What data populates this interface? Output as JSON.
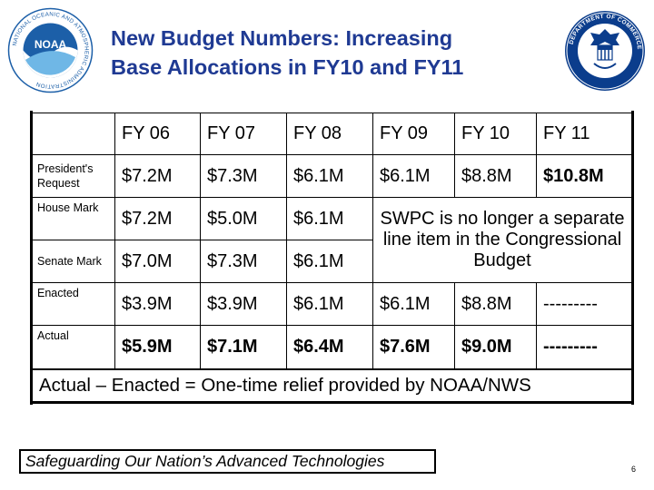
{
  "header": {
    "title_line1": "New Budget Numbers: Increasing",
    "title_line2": "Base Allocations in FY10 and FY11",
    "left_logo": {
      "name": "noaa-logo",
      "ring_text": "NATIONAL OCEANIC AND ATMOSPHERIC ADMINISTRATION",
      "ring_text_bottom": "U.S. DEPARTMENT OF COMMERCE",
      "center_text": "NOAA"
    },
    "right_logo": {
      "name": "department-of-commerce-seal",
      "ring_text": "DEPARTMENT OF COMMERCE",
      "ring_text_bottom": "UNITED STATES OF AMERICA"
    }
  },
  "table": {
    "years": [
      "FY 06",
      "FY 07",
      "FY 08",
      "FY 09",
      "FY 10",
      "FY 11"
    ],
    "rows": {
      "presidents_request": {
        "label": "President's Request",
        "values": [
          "$7.2M",
          "$7.3M",
          "$6.1M",
          "$6.1M",
          "$8.8M",
          "$10.8M"
        ]
      },
      "house_mark": {
        "label": "House Mark",
        "values": [
          "$7.2M",
          "$5.0M",
          "$6.1M"
        ]
      },
      "senate_mark": {
        "label": "Senate Mark",
        "values": [
          "$7.0M",
          "$7.3M",
          "$6.1M"
        ]
      },
      "enacted": {
        "label": "Enacted",
        "values": [
          "$3.9M",
          "$3.9M",
          "$6.1M",
          "$6.1M",
          "$8.8M",
          "---------"
        ]
      },
      "actual": {
        "label": "Actual",
        "values": [
          "$5.9M",
          "$7.1M",
          "$6.4M",
          "$7.6M",
          "$9.0M",
          "---------"
        ]
      }
    },
    "note": "SWPC is no longer a separate line item in the Congressional Budget"
  },
  "relief_text": "Actual – Enacted = One-time relief provided by NOAA/NWS",
  "footer": {
    "tagline": "Safeguarding Our Nation’s Advanced Technologies",
    "page_number": "6"
  },
  "colors": {
    "title": "#1f3a93",
    "noaa_blue": "#1c5fa8",
    "noaa_sky": "#6fb7e6",
    "seal_blue": "#0b3d8c"
  },
  "icons": [
    "noaa-logo-icon",
    "commerce-seal-icon"
  ]
}
